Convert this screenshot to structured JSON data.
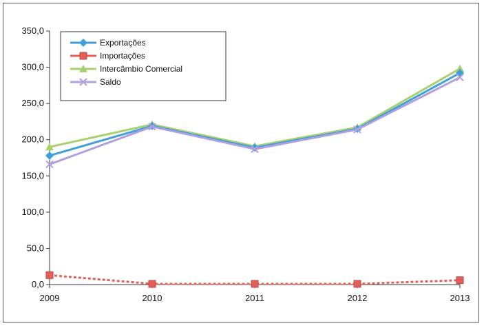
{
  "chart_data": {
    "type": "line",
    "title": "",
    "xlabel": "",
    "ylabel": "",
    "x": [
      "2009",
      "2010",
      "2011",
      "2012",
      "2013"
    ],
    "ylim": [
      0,
      350
    ],
    "yticks": [
      "0,0",
      "50,0",
      "100,0",
      "150,0",
      "200,0",
      "250,0",
      "300,0",
      "350,0"
    ],
    "grid": false,
    "legend_position": "top-left",
    "series": [
      {
        "name": "Exportações",
        "values": [
          178,
          219,
          189,
          215,
          292
        ],
        "color": "#3fa0d8",
        "marker": "diamond"
      },
      {
        "name": "Importações",
        "values": [
          13,
          1,
          1,
          1,
          6
        ],
        "color": "#e06058",
        "marker": "square"
      },
      {
        "name": "Intercâmbio Comercial",
        "values": [
          190,
          221,
          191,
          217,
          298
        ],
        "color": "#a8d070",
        "marker": "triangle"
      },
      {
        "name": "Saldo",
        "values": [
          166,
          218,
          187,
          214,
          286
        ],
        "color": "#b0a0e0",
        "marker": "x"
      }
    ]
  }
}
